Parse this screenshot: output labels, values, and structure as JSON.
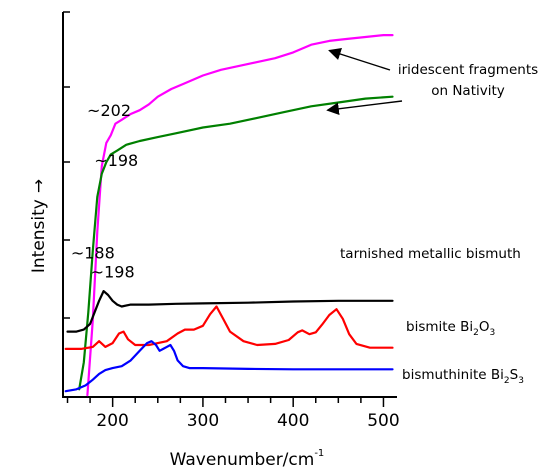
{
  "chart_data": {
    "type": "line",
    "title": "",
    "xlabel": "Wavenumber/cm",
    "xlabel_superscript": "-1",
    "ylabel": "Intensity",
    "ylabel_arrow": "→",
    "xlim": [
      145,
      515
    ],
    "ylim": [
      0,
      100
    ],
    "y_ticks_labeled": false,
    "grid": false,
    "x_ticks": [
      {
        "value": 200,
        "label": "200"
      },
      {
        "value": 300,
        "label": "300"
      },
      {
        "value": 400,
        "label": "400"
      },
      {
        "value": 500,
        "label": "500"
      }
    ],
    "series": [
      {
        "name": "",
        "color": "#ff00ff",
        "x": [
          172,
          178,
          183,
          188,
          193,
          198,
          203,
          210,
          220,
          230,
          240,
          250,
          265,
          280,
          300,
          320,
          340,
          360,
          380,
          400,
          420,
          440,
          460,
          480,
          500,
          510
        ],
        "y": [
          0.5,
          20,
          43,
          60,
          66,
          68,
          71,
          72,
          73.5,
          74.5,
          76,
          78,
          80,
          81.5,
          83.5,
          85,
          86,
          87,
          88,
          89.5,
          91.5,
          92.5,
          93,
          93.5,
          94,
          94
        ]
      },
      {
        "name": "",
        "color": "#008000",
        "x": [
          163,
          168,
          173,
          178,
          183,
          188,
          193,
          198,
          205,
          215,
          230,
          250,
          270,
          300,
          330,
          360,
          390,
          420,
          450,
          480,
          510
        ],
        "y": [
          2,
          9,
          22,
          38,
          52,
          58,
          61,
          63,
          64,
          65.5,
          66.5,
          67.5,
          68.5,
          70,
          71,
          72.5,
          74,
          75.5,
          76.5,
          77.5,
          78
        ]
      },
      {
        "name": "tarnished metallic bismuth",
        "color": "#000000",
        "x": [
          150,
          160,
          168,
          175,
          180,
          185,
          190,
          195,
          200,
          205,
          210,
          220,
          240,
          270,
          300,
          350,
          400,
          450,
          500,
          510
        ],
        "y": [
          17,
          17,
          17.5,
          19,
          22,
          25,
          27.5,
          26.5,
          25,
          24,
          23.5,
          24,
          24,
          24.2,
          24.3,
          24.5,
          24.8,
          25,
          25,
          25
        ]
      },
      {
        "name": "bismite",
        "name_base": "bismite Bi",
        "name_sub1": "2",
        "name_mid": "O",
        "name_sub2": "3",
        "color": "#ff0000",
        "x": [
          148,
          165,
          178,
          185,
          192,
          200,
          207,
          212,
          217,
          225,
          240,
          260,
          272,
          280,
          290,
          300,
          308,
          315,
          322,
          330,
          345,
          360,
          380,
          395,
          405,
          410,
          418,
          425,
          432,
          440,
          448,
          455,
          462,
          470,
          485,
          500,
          510
        ],
        "y": [
          12.5,
          12.5,
          13,
          14.5,
          13,
          14,
          16.5,
          17,
          15,
          13.5,
          13.5,
          14.5,
          16.5,
          17.5,
          17.5,
          18.5,
          21.5,
          23.5,
          20.5,
          17,
          14.5,
          13.5,
          13.8,
          14.8,
          16.8,
          17.3,
          16.3,
          16.8,
          18.8,
          21.3,
          22.8,
          20.3,
          16.3,
          13.8,
          12.8,
          12.8,
          12.8
        ]
      },
      {
        "name": "bismuthinite",
        "name_base": "bismuthinite Bi",
        "name_sub1": "2",
        "name_mid": "S",
        "name_sub2": "3",
        "color": "#0000ff",
        "x": [
          148,
          160,
          170,
          178,
          185,
          192,
          200,
          210,
          220,
          230,
          238,
          243,
          248,
          252,
          256,
          260,
          264,
          268,
          272,
          278,
          285,
          300,
          350,
          400,
          450,
          500,
          510
        ],
        "y": [
          1.5,
          2,
          3,
          4.5,
          6,
          7,
          7.5,
          8,
          9.5,
          12,
          14,
          14.5,
          13.5,
          12,
          12.5,
          13,
          13.5,
          12,
          9.5,
          8,
          7.5,
          7.5,
          7.3,
          7.2,
          7.2,
          7.2,
          7.2
        ]
      }
    ],
    "annotations": [
      {
        "text": "~202",
        "x": 196,
        "y": 73
      },
      {
        "text": "~198",
        "x": 204,
        "y": 60
      },
      {
        "text": "~188",
        "x": 178,
        "y": 36
      },
      {
        "text": "~198",
        "x": 200,
        "y": 31
      }
    ],
    "callout": {
      "lines": [
        "iridescent fragments",
        "on Nativity"
      ],
      "arrow_targets": [
        {
          "x": 440,
          "y": 90
        },
        {
          "x": 438,
          "y": 74.5
        }
      ]
    }
  }
}
